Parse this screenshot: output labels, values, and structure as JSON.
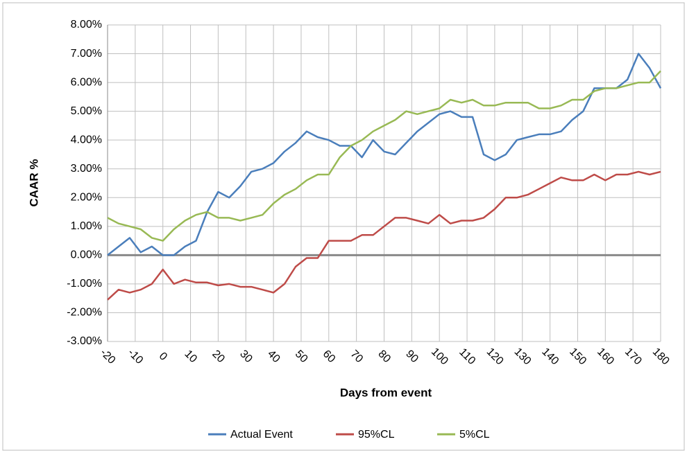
{
  "chart_data": {
    "type": "line",
    "xlabel": "Days from event",
    "ylabel": "CAAR %",
    "x": [
      -20,
      -16,
      -12,
      -8,
      -4,
      0,
      4,
      8,
      12,
      16,
      20,
      24,
      28,
      32,
      36,
      40,
      44,
      48,
      52,
      56,
      60,
      64,
      68,
      72,
      76,
      80,
      84,
      88,
      92,
      96,
      100,
      104,
      108,
      112,
      116,
      120,
      124,
      128,
      132,
      136,
      140,
      144,
      148,
      152,
      156,
      160,
      164,
      168,
      172,
      176,
      180
    ],
    "series": [
      {
        "name": "Actual Event",
        "color": "#4a7ebb",
        "values": [
          0.0,
          0.3,
          0.6,
          0.1,
          0.3,
          0.0,
          0.0,
          0.3,
          0.5,
          1.5,
          2.2,
          2.0,
          2.4,
          2.9,
          3.0,
          3.2,
          3.6,
          3.9,
          4.3,
          4.1,
          4.0,
          3.8,
          3.8,
          3.4,
          4.0,
          3.6,
          3.5,
          3.9,
          4.3,
          4.6,
          4.9,
          5.0,
          4.8,
          4.8,
          3.5,
          3.3,
          3.5,
          4.0,
          4.1,
          4.2,
          4.2,
          4.3,
          4.7,
          5.0,
          5.8,
          5.8,
          5.8,
          6.1,
          7.0,
          6.5,
          5.8
        ]
      },
      {
        "name": "95%CL",
        "color": "#be4b48",
        "values": [
          -1.55,
          -1.2,
          -1.3,
          -1.2,
          -1.0,
          -0.5,
          -1.0,
          -0.85,
          -0.95,
          -0.95,
          -1.05,
          -1.0,
          -1.1,
          -1.1,
          -1.2,
          -1.3,
          -1.0,
          -0.4,
          -0.1,
          -0.1,
          0.5,
          0.5,
          0.5,
          0.7,
          0.7,
          1.0,
          1.3,
          1.3,
          1.2,
          1.1,
          1.4,
          1.1,
          1.2,
          1.2,
          1.3,
          1.6,
          2.0,
          2.0,
          2.1,
          2.3,
          2.5,
          2.7,
          2.6,
          2.6,
          2.8,
          2.6,
          2.8,
          2.8,
          2.9,
          2.8,
          2.9
        ]
      },
      {
        "name": "5%CL",
        "color": "#98b954",
        "values": [
          1.3,
          1.1,
          1.0,
          0.9,
          0.6,
          0.5,
          0.9,
          1.2,
          1.4,
          1.5,
          1.3,
          1.3,
          1.2,
          1.3,
          1.4,
          1.8,
          2.1,
          2.3,
          2.6,
          2.8,
          2.8,
          3.4,
          3.8,
          4.0,
          4.3,
          4.5,
          4.7,
          5.0,
          4.9,
          5.0,
          5.1,
          5.4,
          5.3,
          5.4,
          5.2,
          5.2,
          5.3,
          5.3,
          5.3,
          5.1,
          5.1,
          5.2,
          5.4,
          5.4,
          5.7,
          5.8,
          5.8,
          5.9,
          6.0,
          6.0,
          6.4
        ]
      }
    ],
    "xlim": [
      -20,
      180
    ],
    "xticks": [
      -20,
      -10,
      0,
      10,
      20,
      30,
      40,
      50,
      60,
      70,
      80,
      90,
      100,
      110,
      120,
      130,
      140,
      150,
      160,
      170,
      180
    ],
    "ylim": [
      -3,
      8
    ],
    "yticks": [
      {
        "value": -3,
        "label": "-3.00%"
      },
      {
        "value": -2,
        "label": "-2.00%"
      },
      {
        "value": -1,
        "label": "-1.00%"
      },
      {
        "value": 0,
        "label": "0.00%"
      },
      {
        "value": 1,
        "label": "1.00%"
      },
      {
        "value": 2,
        "label": "2.00%"
      },
      {
        "value": 3,
        "label": "3.00%"
      },
      {
        "value": 4,
        "label": "4.00%"
      },
      {
        "value": 5,
        "label": "5.00%"
      },
      {
        "value": 6,
        "label": "6.00%"
      },
      {
        "value": 7,
        "label": "7.00%"
      },
      {
        "value": 8,
        "label": "8.00%"
      }
    ],
    "grid": true,
    "legend": "bottom"
  }
}
